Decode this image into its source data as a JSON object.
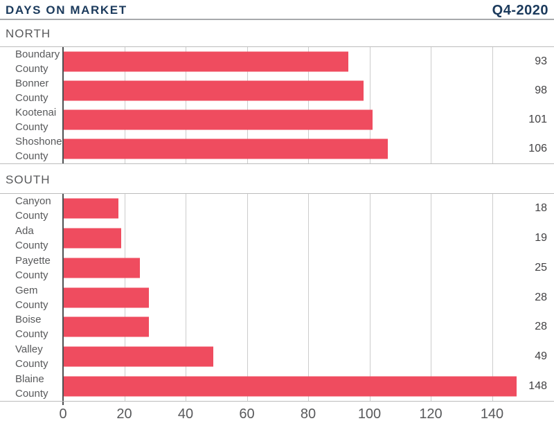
{
  "header": {
    "title": "DAYS ON MARKET",
    "period": "Q4-2020"
  },
  "colors": {
    "bar": "#EF4C5F",
    "navy": "#1B3A5C",
    "label_gray": "#58595B",
    "value_gray": "#414042",
    "grid": "#CCCCCC",
    "axis_dark": "#4F5052",
    "border": "#BCBCBC",
    "title_rule": "#A7A9AC"
  },
  "chart_data": {
    "type": "bar",
    "orientation": "horizontal",
    "title": "DAYS ON MARKET",
    "subtitle": "Q4-2020",
    "xlabel": "",
    "ylabel": "",
    "xlim": [
      0,
      160
    ],
    "x_ticks": [
      0,
      20,
      40,
      60,
      80,
      100,
      120,
      140
    ],
    "grid": true,
    "value_label_position": "right-aligned at chart right edge",
    "sections": [
      {
        "label": "NORTH",
        "categories": [
          "Boundary County",
          "Bonner County",
          "Kootenai County",
          "Shoshone County"
        ],
        "values": [
          93,
          98,
          101,
          106
        ]
      },
      {
        "label": "SOUTH",
        "categories": [
          "Canyon County",
          "Ada County",
          "Payette County",
          "Gem County",
          "Boise County",
          "Valley County",
          "Blaine County"
        ],
        "values": [
          18,
          19,
          25,
          28,
          28,
          49,
          148
        ]
      }
    ]
  }
}
